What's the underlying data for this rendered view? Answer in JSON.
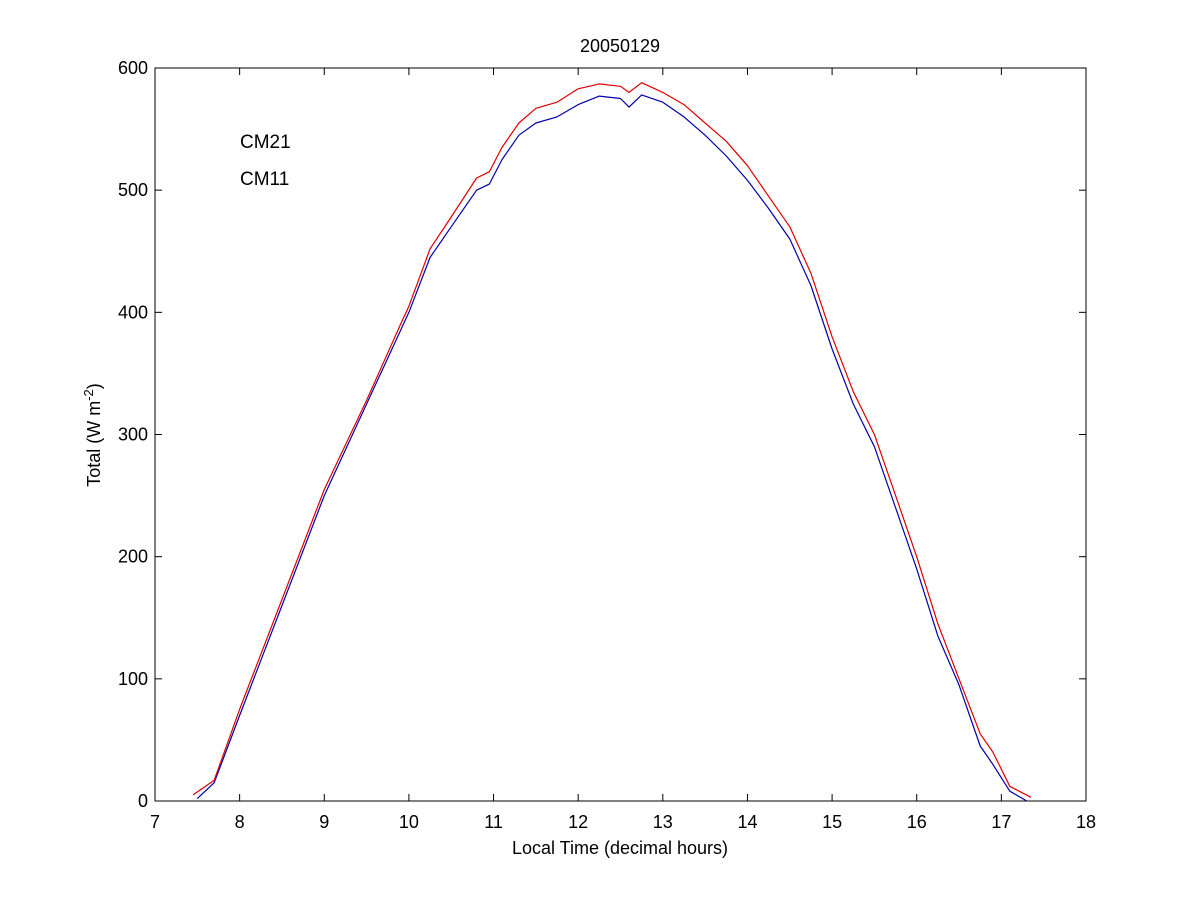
{
  "chart_data": {
    "type": "line",
    "title": "20050129",
    "xlabel": "Local Time (decimal hours)",
    "ylabel_main": "Total (W m",
    "ylabel_sup": "-2",
    "ylabel_close": ")",
    "xlim": [
      7,
      18
    ],
    "ylim": [
      0,
      600
    ],
    "xticks": [
      7,
      8,
      9,
      10,
      11,
      12,
      13,
      14,
      15,
      16,
      17,
      18
    ],
    "yticks": [
      0,
      100,
      200,
      300,
      400,
      500,
      600
    ],
    "grid": false,
    "legend_position": "top-left",
    "series": [
      {
        "name": "CM21",
        "color": "#0000aa",
        "x": [
          7.5,
          7.7,
          8.0,
          8.5,
          9.0,
          9.5,
          9.9,
          10.0,
          10.25,
          10.5,
          10.8,
          10.95,
          11.1,
          11.3,
          11.5,
          11.75,
          12.0,
          12.25,
          12.5,
          12.6,
          12.75,
          13.0,
          13.25,
          13.5,
          13.75,
          14.0,
          14.25,
          14.5,
          14.75,
          15.0,
          15.25,
          15.5,
          15.75,
          16.0,
          16.25,
          16.5,
          16.75,
          16.9,
          17.1,
          17.3
        ],
        "y": [
          2,
          15,
          70,
          160,
          250,
          325,
          385,
          400,
          445,
          470,
          500,
          505,
          525,
          545,
          555,
          560,
          570,
          577,
          575,
          568,
          578,
          572,
          560,
          545,
          528,
          508,
          485,
          460,
          422,
          370,
          325,
          290,
          240,
          190,
          135,
          95,
          45,
          30,
          8,
          0
        ]
      },
      {
        "name": "CM11",
        "color": "#dd0000",
        "x": [
          7.45,
          7.7,
          8.0,
          8.5,
          9.0,
          9.5,
          9.9,
          10.0,
          10.25,
          10.5,
          10.8,
          10.95,
          11.1,
          11.3,
          11.5,
          11.75,
          12.0,
          12.25,
          12.5,
          12.6,
          12.75,
          13.0,
          13.25,
          13.5,
          13.75,
          14.0,
          14.25,
          14.5,
          14.75,
          15.0,
          15.25,
          15.5,
          15.75,
          16.0,
          16.25,
          16.5,
          16.75,
          16.9,
          17.1,
          17.35
        ],
        "y": [
          5,
          17,
          75,
          165,
          255,
          328,
          390,
          405,
          452,
          478,
          510,
          515,
          535,
          555,
          567,
          572,
          583,
          587,
          585,
          580,
          588,
          580,
          570,
          555,
          540,
          520,
          495,
          470,
          432,
          380,
          335,
          300,
          250,
          200,
          145,
          100,
          55,
          40,
          12,
          3
        ]
      }
    ]
  }
}
